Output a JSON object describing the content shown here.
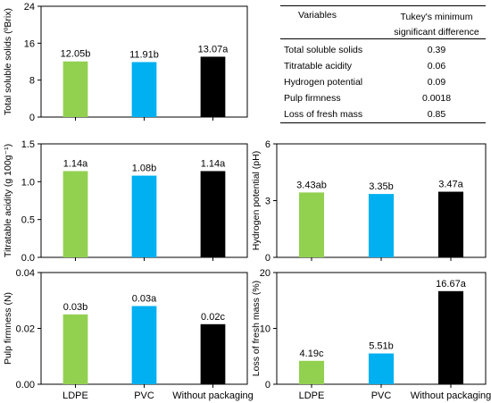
{
  "categories": [
    "LDPE",
    "PVC",
    "Without packaging"
  ],
  "colors": [
    "#92d050",
    "#00b0f0",
    "#000000"
  ],
  "chart_data": [
    {
      "type": "bar",
      "ylabel": "Total soluble solids (ºBrix)",
      "ylim": [
        0,
        24
      ],
      "yticks": [
        0,
        8,
        16,
        24
      ],
      "ytick_labels": [
        "0",
        "8",
        "16",
        "24"
      ],
      "values": [
        12.05,
        11.91,
        13.07
      ],
      "data_labels": [
        "12.05b",
        "11.91b",
        "13.07a"
      ]
    },
    {
      "type": "bar",
      "ylabel": "Titratable acidity (g 100g⁻¹)",
      "ylim": [
        0,
        1.5
      ],
      "yticks": [
        0,
        0.5,
        1.0,
        1.5
      ],
      "ytick_labels": [
        "0.0",
        "0.5",
        "1.0",
        "1.5"
      ],
      "values": [
        1.14,
        1.08,
        1.14
      ],
      "data_labels": [
        "1.14a",
        "1.08b",
        "1.14a"
      ]
    },
    {
      "type": "bar",
      "ylabel": "Hydrogen potential (pH)",
      "ylim": [
        0,
        6
      ],
      "yticks": [
        0,
        3,
        6
      ],
      "ytick_labels": [
        "0",
        "3",
        "6"
      ],
      "values": [
        3.43,
        3.35,
        3.47
      ],
      "data_labels": [
        "3.43ab",
        "3.35b",
        "3.47a"
      ]
    },
    {
      "type": "bar",
      "ylabel": "Pulp firmness (N)",
      "ylim": [
        0,
        0.04
      ],
      "yticks": [
        0,
        0.02,
        0.04
      ],
      "ytick_labels": [
        "0.00",
        "0.02",
        "0.04"
      ],
      "values": [
        0.025,
        0.028,
        0.0215
      ],
      "data_labels": [
        "0.03b",
        "0.03a",
        "0.02c"
      ],
      "xtick_labels": [
        "LDPE",
        "PVC",
        "Without packaging"
      ]
    },
    {
      "type": "bar",
      "ylabel": "Loss of fresh mass (%)",
      "ylim": [
        0,
        20
      ],
      "yticks": [
        0,
        10,
        20
      ],
      "ytick_labels": [
        "0",
        "10",
        "20"
      ],
      "values": [
        4.19,
        5.51,
        16.67
      ],
      "data_labels": [
        "4.19c",
        "5.51b",
        "16.67a"
      ],
      "xtick_labels": [
        "LDPE",
        "PVC",
        "Without packaging"
      ]
    }
  ],
  "tukey_table": {
    "col1_header": "Variables",
    "col2_header_line1": "Tukey's minimum",
    "col2_header_line2": "significant difference",
    "rows": [
      {
        "variable": "Total soluble solids",
        "value": "0.39"
      },
      {
        "variable": "Titratable acidity",
        "value": "0.06"
      },
      {
        "variable": "Hydrogen potential",
        "value": "0.09"
      },
      {
        "variable": "Pulp firmness",
        "value": "0.0018"
      },
      {
        "variable": "Loss of fresh mass",
        "value": "0.85"
      }
    ]
  }
}
